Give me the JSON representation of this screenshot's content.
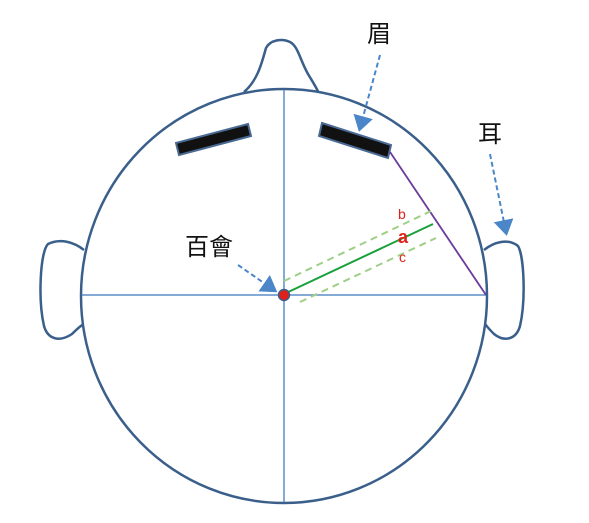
{
  "labels": {
    "eyebrow": "眉",
    "ear": "耳",
    "crown_point": "百會",
    "line_b": "b",
    "line_a": "a",
    "line_c": "c"
  },
  "colors": {
    "outline": "#3a5f8a",
    "axis": "#5b8fc8",
    "arrow": "#4a86c8",
    "eyebrow_fill": "#111111",
    "eyebrow_stroke": "#4a6a94",
    "line_main": "#1aa03a",
    "line_offset": "#9fcf86",
    "line_diag": "#6a3b9c",
    "crown_dot": "#e0211b",
    "label_red": "#e0211b"
  }
}
